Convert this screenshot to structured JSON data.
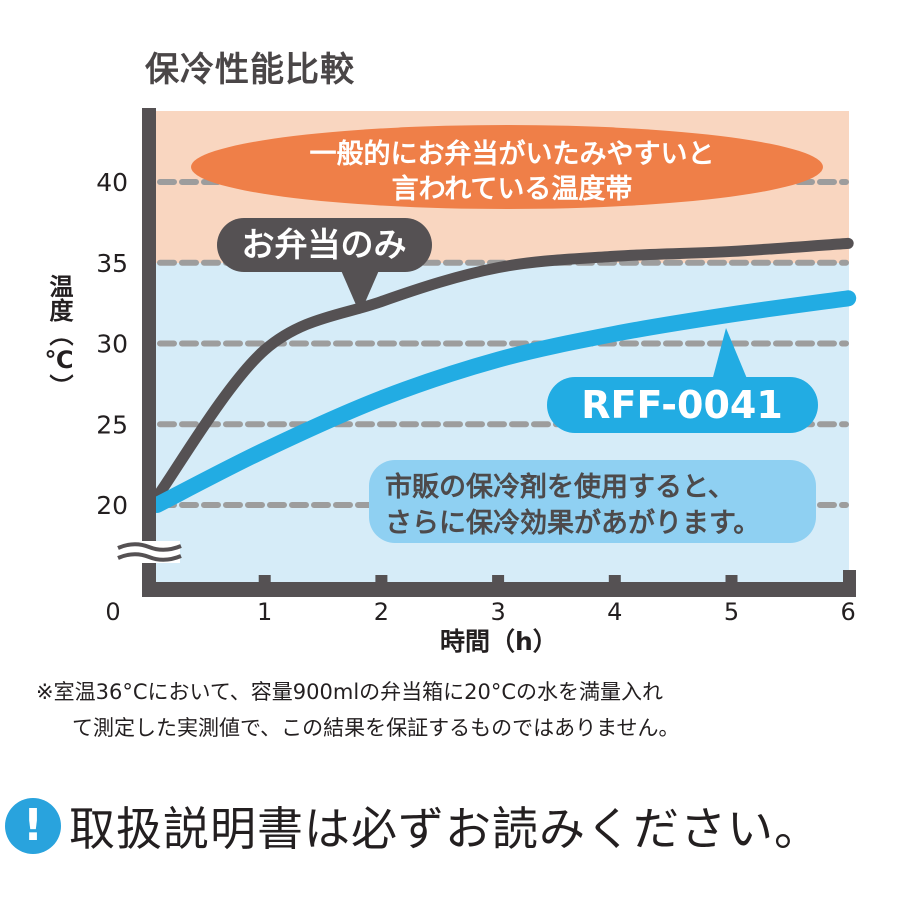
{
  "title": "保冷性能比較",
  "colors": {
    "danger_band": "#f9d6c0",
    "safe_band": "#d6ecf8",
    "axis": "#555153",
    "gridline": "#9d9d9d",
    "danger_ellipse": "#ef7f48",
    "series_bento_only": "#555153",
    "series_rff": "#22ace3",
    "note_box": "#8fd0f2",
    "note_text": "#4d4a4b",
    "notice_icon": "#29a3dd"
  },
  "annotations": {
    "danger_zone_line1": "一般的にお弁当がいたみやすいと",
    "danger_zone_line2": "言われている温度帯",
    "bento_only_label": "お弁当のみ",
    "rff_label": "RFF-0041",
    "note_line1": "市販の保冷剤を使用すると、",
    "note_line2": "さらに保冷効果があがります。"
  },
  "axes": {
    "y_label": "温度（℃）",
    "x_label": "時間（h）",
    "y_ticks": [
      "40",
      "35",
      "30",
      "25",
      "20"
    ],
    "x_ticks": [
      "0",
      "1",
      "2",
      "3",
      "4",
      "5",
      "6"
    ]
  },
  "footnote": {
    "line1": "※室温36°Cにおいて、容量900mlの弁当箱に20°Cの水を満量入れ",
    "line2": "て測定した実測値で、この結果を保証するものではありません。"
  },
  "notice": {
    "icon": "exclamation-circle-icon",
    "icon_glyph": "!",
    "text": "取扱説明書は必ずお読みください。"
  },
  "chart_data": {
    "type": "line",
    "title": "保冷性能比較",
    "xlabel": "時間（h）",
    "ylabel": "温度（℃）",
    "x": [
      0,
      1,
      2,
      3,
      4,
      5,
      6
    ],
    "xlim": [
      0,
      6
    ],
    "ylim": [
      17,
      43
    ],
    "y_axis_break": true,
    "grid": "dashed horizontal at 20, 25, 30, 35, 40",
    "bands": [
      {
        "label": "一般的にお弁当がいたみやすいと言われている温度帯",
        "from": 35,
        "to": 43,
        "color": "#f9d6c0"
      },
      {
        "label": "",
        "from": 17,
        "to": 35,
        "color": "#d6ecf8"
      }
    ],
    "series": [
      {
        "name": "お弁当のみ",
        "color": "#555153",
        "values": [
          20.5,
          29.6,
          32.6,
          34.7,
          35.4,
          35.7,
          36.2
        ]
      },
      {
        "name": "RFF-0041",
        "color": "#22ace3",
        "values": [
          20.0,
          23.4,
          26.6,
          29.0,
          30.6,
          31.8,
          32.8
        ]
      }
    ]
  }
}
